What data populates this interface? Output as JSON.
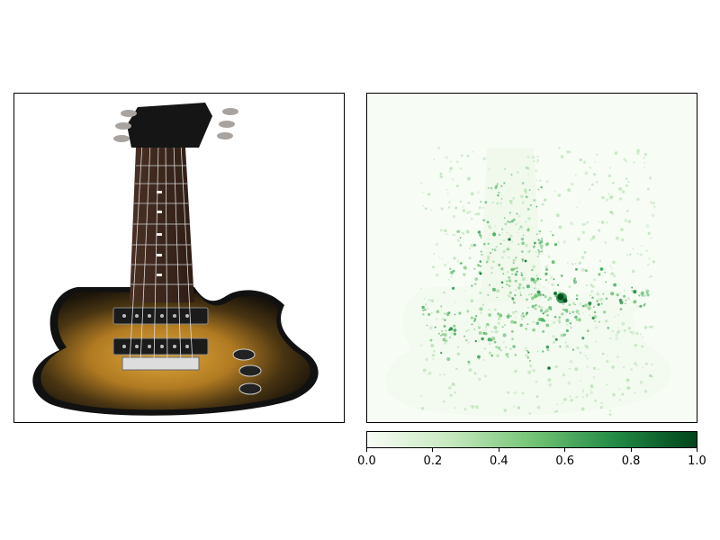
{
  "left_image": {
    "icon": "electric-guitar-image",
    "description": "sunburst single-cutaway electric guitar"
  },
  "right_image": {
    "icon": "saliency-heatmap",
    "colormap": "Greens"
  },
  "colorbar": {
    "colors": [
      "#f7fcf5",
      "#c7e9c0",
      "#74c476",
      "#238b45",
      "#00441b"
    ],
    "ticks": [
      "0.0",
      "0.2",
      "0.4",
      "0.6",
      "0.8",
      "1.0"
    ],
    "range": [
      0.0,
      1.0
    ]
  }
}
